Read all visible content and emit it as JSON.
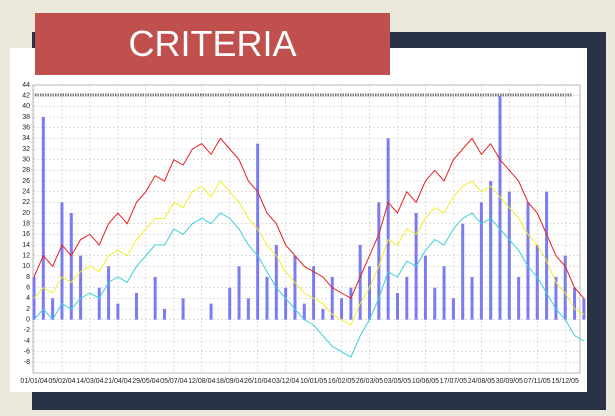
{
  "title": "CRITERIA",
  "chart_data": {
    "type": "line",
    "categories": [
      "01/01/04",
      null,
      null,
      "05/02/04",
      null,
      null,
      "14/03/04",
      null,
      null,
      "21/04/04",
      null,
      null,
      "29/05/04",
      null,
      null,
      "05/07/04",
      null,
      null,
      "12/08/04",
      null,
      null,
      "18/09/04",
      null,
      null,
      "26/10/04",
      null,
      null,
      "03/12/04",
      null,
      null,
      "10/01/05",
      null,
      null,
      "16/02/05",
      null,
      null,
      "26/03/05",
      null,
      null,
      "03/05/05",
      null,
      null,
      "10/06/05",
      null,
      null,
      "17/07/05",
      null,
      null,
      "24/08/05",
      null,
      null,
      "30/09/05",
      null,
      null,
      "07/11/05",
      null,
      null,
      "15/12/05",
      null,
      null
    ],
    "series": [
      {
        "type": "bar",
        "color": "#7b7cf0",
        "values": [
          8,
          38,
          4,
          22,
          20,
          12,
          0,
          6,
          10,
          3,
          0,
          5,
          0,
          8,
          2,
          0,
          4,
          0,
          0,
          3,
          0,
          6,
          10,
          4,
          33,
          8,
          14,
          6,
          12,
          3,
          10,
          2,
          8,
          4,
          6,
          14,
          10,
          22,
          34,
          5,
          8,
          20,
          12,
          6,
          10,
          4,
          18,
          8,
          22,
          26,
          42,
          24,
          8,
          22,
          14,
          24,
          8,
          12,
          6,
          4
        ]
      },
      {
        "type": "line",
        "color": "#e82020",
        "values": [
          8,
          12,
          10,
          14,
          12,
          15,
          16,
          14,
          18,
          20,
          18,
          22,
          24,
          27,
          26,
          30,
          29,
          32,
          33,
          31,
          34,
          32,
          30,
          26,
          24,
          20,
          18,
          14,
          12,
          10,
          9,
          8,
          6,
          5,
          4,
          8,
          12,
          16,
          22,
          20,
          24,
          22,
          26,
          28,
          26,
          30,
          32,
          34,
          31,
          33,
          30,
          28,
          26,
          22,
          20,
          16,
          12,
          10,
          6,
          4
        ]
      },
      {
        "type": "line",
        "color": "#f2ee2a",
        "values": [
          4,
          6,
          5,
          8,
          7,
          9,
          10,
          9,
          12,
          13,
          12,
          15,
          17,
          19,
          19,
          22,
          21,
          24,
          25,
          23,
          26,
          24,
          22,
          19,
          17,
          14,
          12,
          9,
          7,
          5,
          4,
          3,
          1,
          0,
          -1,
          3,
          6,
          10,
          15,
          14,
          17,
          16,
          19,
          21,
          20,
          23,
          25,
          26,
          24,
          25,
          23,
          21,
          19,
          16,
          14,
          11,
          7,
          5,
          2,
          1
        ]
      },
      {
        "type": "line",
        "color": "#3ad0d8",
        "values": [
          0,
          2,
          0,
          3,
          2,
          4,
          5,
          4,
          7,
          8,
          7,
          10,
          12,
          14,
          14,
          17,
          16,
          18,
          19,
          18,
          20,
          19,
          17,
          14,
          12,
          9,
          6,
          4,
          2,
          0,
          -1,
          -3,
          -5,
          -6,
          -7,
          -3,
          0,
          4,
          9,
          8,
          11,
          10,
          13,
          15,
          14,
          17,
          19,
          20,
          18,
          19,
          17,
          15,
          13,
          10,
          8,
          5,
          2,
          0,
          -3,
          -4
        ]
      }
    ],
    "ylim": [
      -10,
      44
    ],
    "yticks": [
      -8,
      -6,
      -4,
      -2,
      0,
      2,
      4,
      6,
      8,
      10,
      12,
      14,
      16,
      18,
      20,
      22,
      24,
      26,
      28,
      30,
      32,
      34,
      36,
      38,
      40,
      42,
      44
    ],
    "grid": true
  }
}
